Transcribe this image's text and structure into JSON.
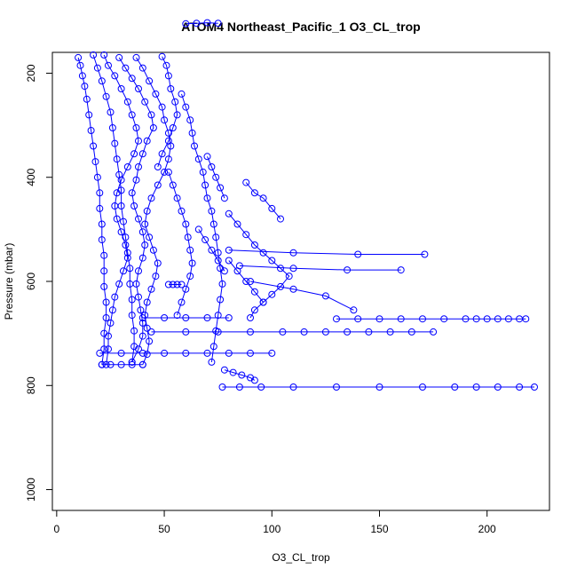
{
  "chart_data": {
    "type": "scatter",
    "title": "ATOM4 Northeast_Pacific_1 O3_CL_trop",
    "xlabel": "O3_CL_trop",
    "ylabel": "Pressure (mbar)",
    "xlim": [
      -2,
      229
    ],
    "ylim": [
      1040,
      160
    ],
    "y_reversed": true,
    "x_ticks": [
      0,
      50,
      100,
      150,
      200
    ],
    "y_ticks": [
      200,
      400,
      600,
      800,
      1000
    ],
    "grid": false,
    "legend": "none",
    "marker": "open-circle",
    "connected_by_lines": true,
    "color": "#0000ff",
    "series": [
      {
        "points": [
          [
            10,
            170
          ],
          [
            11,
            185
          ],
          [
            12,
            205
          ],
          [
            13,
            225
          ],
          [
            14,
            250
          ],
          [
            15,
            280
          ],
          [
            16,
            310
          ],
          [
            17,
            340
          ],
          [
            18,
            370
          ],
          [
            19,
            400
          ],
          [
            20,
            430
          ],
          [
            20,
            460
          ],
          [
            21,
            490
          ],
          [
            21,
            520
          ],
          [
            22,
            550
          ],
          [
            22,
            580
          ],
          [
            22,
            610
          ],
          [
            23,
            640
          ],
          [
            23,
            670
          ],
          [
            22,
            700
          ],
          [
            22,
            730
          ],
          [
            21,
            760
          ]
        ]
      },
      {
        "points": [
          [
            17,
            165
          ],
          [
            19,
            190
          ],
          [
            21,
            215
          ],
          [
            23,
            245
          ],
          [
            25,
            275
          ],
          [
            26,
            305
          ],
          [
            27,
            335
          ],
          [
            28,
            365
          ],
          [
            29,
            395
          ],
          [
            30,
            425
          ],
          [
            30,
            455
          ],
          [
            31,
            485
          ],
          [
            32,
            515
          ],
          [
            33,
            545
          ],
          [
            34,
            575
          ],
          [
            34,
            605
          ],
          [
            35,
            635
          ],
          [
            35,
            665
          ],
          [
            36,
            695
          ],
          [
            36,
            725
          ],
          [
            35,
            755
          ]
        ]
      },
      {
        "points": [
          [
            22,
            165
          ],
          [
            24,
            185
          ],
          [
            27,
            205
          ],
          [
            30,
            230
          ],
          [
            33,
            255
          ],
          [
            35,
            280
          ],
          [
            37,
            305
          ],
          [
            38,
            330
          ],
          [
            36,
            355
          ],
          [
            33,
            380
          ],
          [
            30,
            405
          ],
          [
            28,
            430
          ],
          [
            27,
            455
          ],
          [
            28,
            480
          ],
          [
            30,
            505
          ],
          [
            32,
            530
          ],
          [
            33,
            555
          ],
          [
            31,
            580
          ],
          [
            29,
            605
          ],
          [
            27,
            630
          ],
          [
            26,
            655
          ],
          [
            25,
            680
          ],
          [
            24,
            705
          ],
          [
            24,
            730
          ],
          [
            23,
            760
          ]
        ]
      },
      {
        "points": [
          [
            29,
            170
          ],
          [
            32,
            190
          ],
          [
            35,
            210
          ],
          [
            38,
            230
          ],
          [
            41,
            255
          ],
          [
            44,
            280
          ],
          [
            45,
            305
          ],
          [
            42,
            330
          ],
          [
            40,
            355
          ],
          [
            38,
            380
          ],
          [
            37,
            405
          ],
          [
            35,
            430
          ],
          [
            36,
            455
          ],
          [
            38,
            480
          ],
          [
            40,
            505
          ],
          [
            41,
            530
          ],
          [
            40,
            555
          ],
          [
            38,
            580
          ],
          [
            37,
            605
          ],
          [
            38,
            630
          ],
          [
            39,
            655
          ],
          [
            40,
            680
          ],
          [
            40,
            705
          ],
          [
            38,
            730
          ],
          [
            35,
            755
          ]
        ]
      },
      {
        "points": [
          [
            37,
            170
          ],
          [
            40,
            190
          ],
          [
            43,
            215
          ],
          [
            46,
            240
          ],
          [
            49,
            265
          ],
          [
            50,
            290
          ],
          [
            52,
            315
          ],
          [
            53,
            340
          ],
          [
            52,
            365
          ],
          [
            50,
            390
          ],
          [
            47,
            415
          ],
          [
            44,
            440
          ],
          [
            42,
            465
          ],
          [
            41,
            490
          ],
          [
            43,
            515
          ],
          [
            45,
            540
          ],
          [
            47,
            565
          ],
          [
            46,
            590
          ],
          [
            44,
            615
          ],
          [
            42,
            640
          ],
          [
            41,
            665
          ],
          [
            42,
            690
          ],
          [
            43,
            715
          ],
          [
            42,
            740
          ],
          [
            40,
            760
          ]
        ]
      },
      {
        "points": [
          [
            49,
            168
          ],
          [
            51,
            185
          ],
          [
            52,
            205
          ],
          [
            53,
            230
          ],
          [
            55,
            255
          ],
          [
            56,
            280
          ],
          [
            54,
            305
          ],
          [
            52,
            330
          ],
          [
            49,
            355
          ],
          [
            47,
            380
          ]
        ]
      },
      {
        "points": [
          [
            58,
            240
          ],
          [
            60,
            265
          ],
          [
            62,
            290
          ],
          [
            63,
            315
          ],
          [
            64,
            340
          ],
          [
            66,
            365
          ],
          [
            68,
            390
          ],
          [
            69,
            415
          ],
          [
            70,
            440
          ],
          [
            72,
            465
          ],
          [
            73,
            490
          ],
          [
            74,
            515
          ],
          [
            75,
            545
          ],
          [
            76,
            575
          ],
          [
            77,
            605
          ],
          [
            76,
            635
          ],
          [
            75,
            665
          ],
          [
            74,
            695
          ],
          [
            73,
            725
          ],
          [
            72,
            755
          ]
        ]
      },
      {
        "points": [
          [
            52,
            390
          ],
          [
            54,
            415
          ],
          [
            56,
            440
          ],
          [
            58,
            465
          ],
          [
            60,
            490
          ],
          [
            61,
            515
          ],
          [
            62,
            540
          ],
          [
            63,
            565
          ],
          [
            62,
            590
          ],
          [
            60,
            615
          ],
          [
            58,
            640
          ],
          [
            56,
            665
          ]
        ]
      },
      {
        "points": [
          [
            80,
            470
          ],
          [
            84,
            490
          ],
          [
            88,
            510
          ],
          [
            92,
            530
          ],
          [
            96,
            545
          ],
          [
            100,
            560
          ],
          [
            104,
            575
          ],
          [
            108,
            590
          ],
          [
            104,
            610
          ],
          [
            100,
            625
          ],
          [
            96,
            640
          ],
          [
            92,
            655
          ],
          [
            90,
            670
          ]
        ]
      },
      {
        "points": [
          [
            40,
            670
          ],
          [
            50,
            670
          ],
          [
            60,
            670
          ],
          [
            70,
            670
          ],
          [
            80,
            670
          ]
        ]
      },
      {
        "points": [
          [
            44,
            697
          ],
          [
            60,
            697
          ],
          [
            75,
            697
          ],
          [
            90,
            697
          ],
          [
            105,
            697
          ],
          [
            115,
            697
          ],
          [
            125,
            697
          ],
          [
            135,
            697
          ],
          [
            145,
            697
          ],
          [
            155,
            697
          ],
          [
            165,
            697
          ],
          [
            175,
            697
          ]
        ]
      },
      {
        "points": [
          [
            20,
            738
          ],
          [
            30,
            738
          ],
          [
            40,
            738
          ],
          [
            50,
            738
          ],
          [
            60,
            738
          ],
          [
            70,
            738
          ],
          [
            80,
            738
          ],
          [
            90,
            738
          ],
          [
            100,
            738
          ]
        ]
      },
      {
        "points": [
          [
            21,
            760
          ],
          [
            25,
            760
          ],
          [
            30,
            760
          ],
          [
            35,
            760
          ],
          [
            40,
            760
          ]
        ]
      },
      {
        "points": [
          [
            130,
            672
          ],
          [
            140,
            672
          ],
          [
            150,
            672
          ],
          [
            160,
            672
          ],
          [
            170,
            672
          ],
          [
            180,
            672
          ],
          [
            190,
            672
          ],
          [
            195,
            672
          ],
          [
            200,
            672
          ],
          [
            205,
            672
          ],
          [
            210,
            672
          ],
          [
            215,
            672
          ],
          [
            218,
            672
          ]
        ]
      },
      {
        "points": [
          [
            77,
            803
          ],
          [
            85,
            803
          ],
          [
            95,
            803
          ],
          [
            110,
            803
          ],
          [
            130,
            803
          ],
          [
            150,
            803
          ],
          [
            170,
            803
          ],
          [
            185,
            803
          ],
          [
            195,
            803
          ],
          [
            205,
            803
          ],
          [
            215,
            803
          ],
          [
            222,
            803
          ]
        ]
      },
      {
        "points": [
          [
            80,
            540
          ],
          [
            110,
            545
          ],
          [
            140,
            548
          ],
          [
            171,
            548
          ]
        ]
      },
      {
        "points": [
          [
            85,
            570
          ],
          [
            110,
            575
          ],
          [
            135,
            578
          ],
          [
            160,
            578
          ]
        ]
      },
      {
        "points": [
          [
            90,
            600
          ],
          [
            110,
            615
          ],
          [
            125,
            628
          ],
          [
            138,
            655
          ]
        ]
      },
      {
        "points": [
          [
            60,
            105
          ],
          [
            65,
            104
          ],
          [
            70,
            103
          ],
          [
            75,
            104
          ]
        ]
      },
      {
        "points": [
          [
            66,
            500
          ],
          [
            69,
            520
          ],
          [
            72,
            540
          ],
          [
            75,
            560
          ],
          [
            78,
            580
          ]
        ]
      },
      {
        "points": [
          [
            80,
            560
          ],
          [
            84,
            580
          ],
          [
            88,
            600
          ],
          [
            92,
            620
          ],
          [
            96,
            640
          ]
        ]
      },
      {
        "points": [
          [
            88,
            410
          ],
          [
            92,
            430
          ],
          [
            96,
            440
          ],
          [
            100,
            460
          ],
          [
            104,
            480
          ]
        ]
      },
      {
        "points": [
          [
            70,
            360
          ],
          [
            72,
            380
          ],
          [
            74,
            400
          ],
          [
            76,
            420
          ],
          [
            78,
            440
          ]
        ]
      },
      {
        "points": [
          [
            52,
            606
          ],
          [
            54,
            606
          ],
          [
            56,
            606
          ],
          [
            58,
            606
          ]
        ]
      },
      {
        "points": [
          [
            78,
            770
          ],
          [
            82,
            775
          ],
          [
            86,
            780
          ],
          [
            90,
            785
          ],
          [
            92,
            790
          ]
        ]
      }
    ]
  }
}
